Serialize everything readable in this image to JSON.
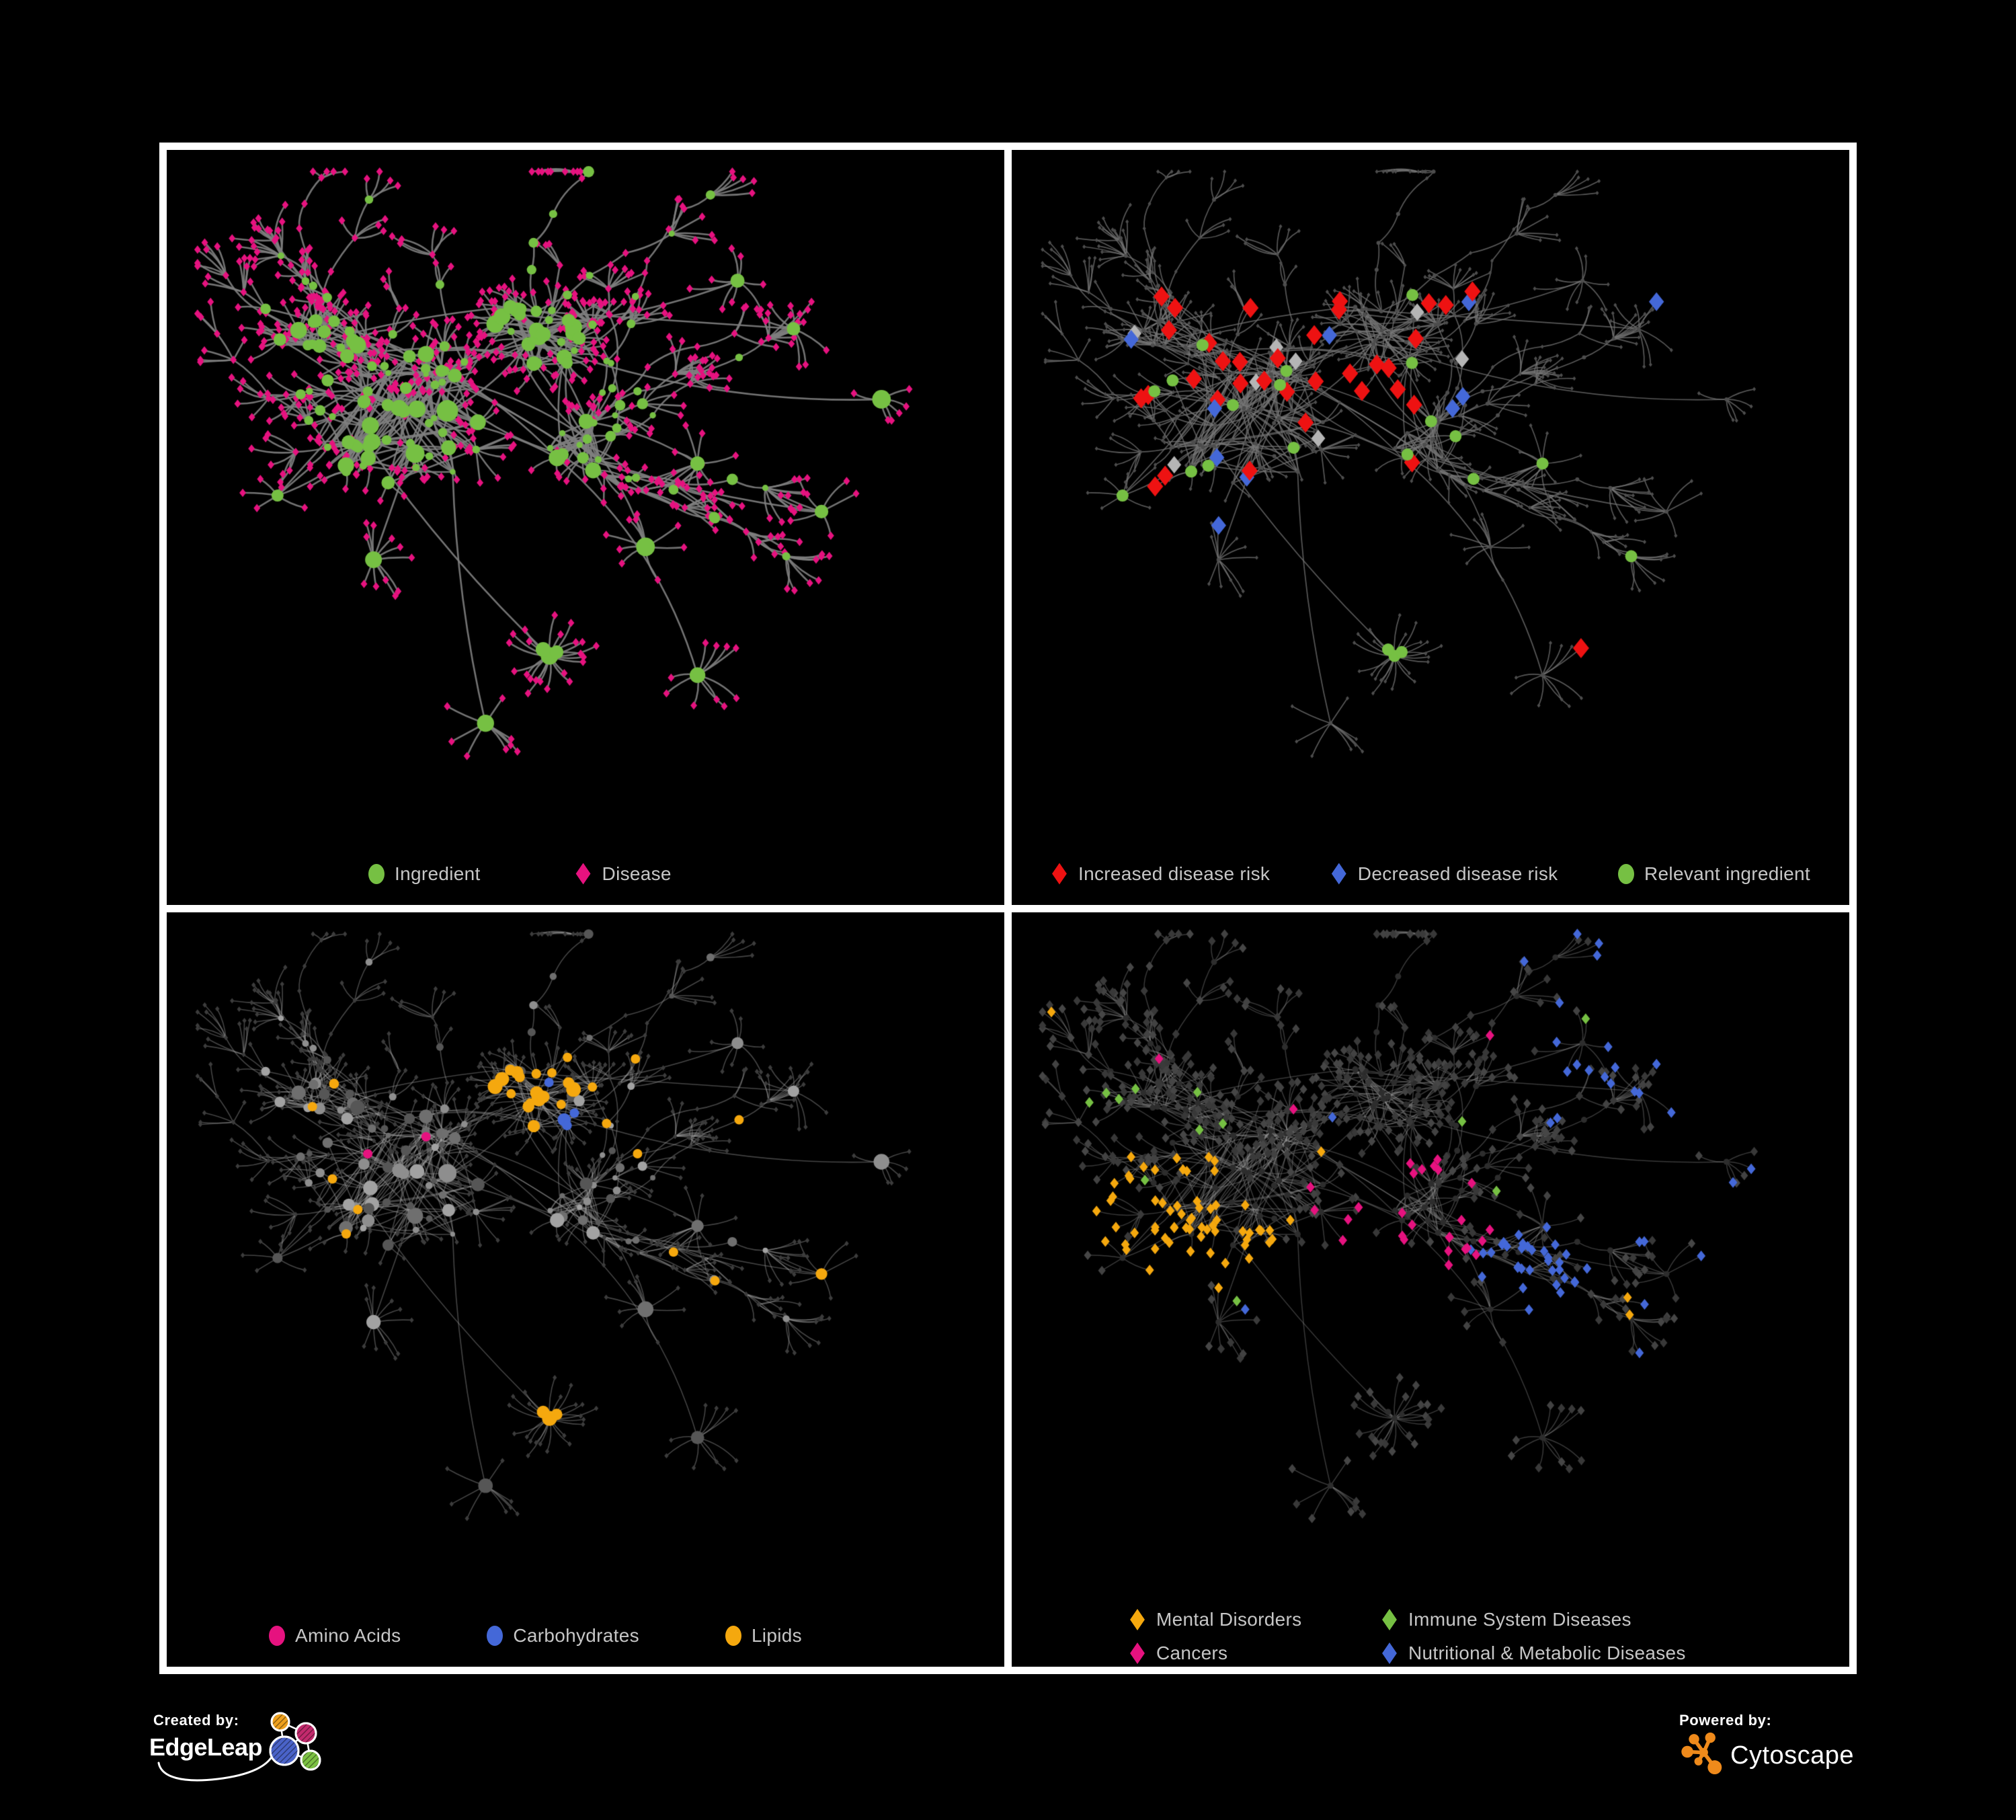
{
  "figure": {
    "background": "#000000",
    "panel_border": "#ffffff",
    "legend_text_color": "#c6c6c6"
  },
  "panels": [
    {
      "id": "ingredient-disease-network",
      "legend": [
        {
          "label": "Ingredient",
          "shape": "circle",
          "color": "#76c043"
        },
        {
          "label": "Disease",
          "shape": "diamond",
          "color": "#e6127f"
        }
      ],
      "style": {
        "edge_color": "rgba(128,128,128,0.9)",
        "circle_color": "#76c043",
        "diamond_color": "#e6127f"
      }
    },
    {
      "id": "disease-risk-network",
      "legend": [
        {
          "label": "Increased disease risk",
          "shape": "diamond",
          "color": "#ee1212"
        },
        {
          "label": "Decreased disease risk",
          "shape": "diamond",
          "color": "#4468d8"
        },
        {
          "label": "Relevant ingredient",
          "shape": "circle",
          "color": "#76c043"
        }
      ],
      "style": {
        "edge_color": "rgba(118,118,118,0.75)",
        "base_node_color": "#4d4d4d",
        "neutral_diamond_color": "#b5b5b5"
      }
    },
    {
      "id": "nutrient-class-network",
      "legend": [
        {
          "label": "Amino Acids",
          "shape": "circle",
          "color": "#e6127f"
        },
        {
          "label": "Carbohydrates",
          "shape": "circle",
          "color": "#4468d8"
        },
        {
          "label": "Lipids",
          "shape": "circle",
          "color": "#f5a80e"
        }
      ],
      "style": {
        "edge_color": "rgba(165,165,165,0.42)",
        "base_circle_color": "#8e8e8e",
        "base_diamond_color": "#3c3c3c"
      }
    },
    {
      "id": "disease-class-network",
      "legend": [
        {
          "label": "Mental Disorders",
          "shape": "diamond",
          "color": "#f5a80e"
        },
        {
          "label": "Immune System Diseases",
          "shape": "diamond",
          "color": "#76c043"
        },
        {
          "label": "Cancers",
          "shape": "diamond",
          "color": "#e6127f"
        },
        {
          "label": "Nutritional & Metabolic Diseases",
          "shape": "diamond",
          "color": "#4468d8"
        }
      ],
      "style": {
        "edge_color": "rgba(150,150,150,0.38)",
        "base_circle_color": "#2d2d2d",
        "base_diamond_color": "#3d3d3d"
      }
    }
  ],
  "footer": {
    "created_by_label": "Created by:",
    "created_by_name": "EdgeLeap",
    "edgeleap_colors": {
      "orange": "#efa11d",
      "pink": "#c32a6d",
      "blue": "#4a63c8",
      "green": "#7cc143"
    },
    "powered_by_label": "Powered by:",
    "powered_by_name": "Cytoscape",
    "cytoscape_color": "#ef8a1b"
  }
}
